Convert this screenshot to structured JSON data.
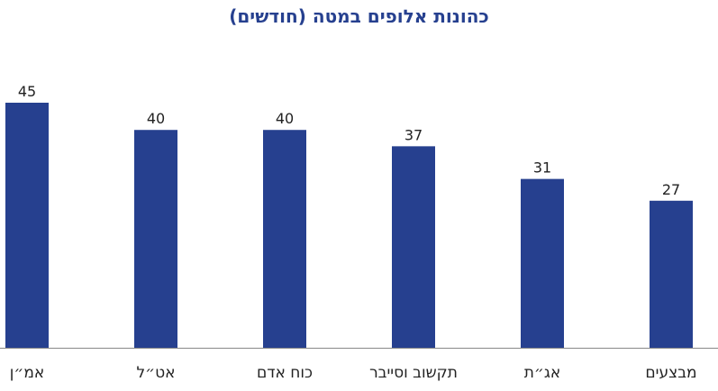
{
  "chart_data": {
    "type": "bar",
    "title": "כהונות אלופים במטה (חודשים)",
    "categories": [
      "אמ״ן",
      "אט״ל",
      "כוח אדם",
      "תקשוב וסייבר",
      "אג״ת",
      "מבצעים"
    ],
    "values": [
      45,
      40,
      40,
      37,
      31,
      27
    ],
    "data_labels": [
      "45",
      "40",
      "40",
      "37",
      "31",
      "27"
    ],
    "ylim": [
      0,
      45
    ],
    "grid": false,
    "legend": "none",
    "colors": {
      "bar": "#26408f",
      "title": "#26408f",
      "axis": "#888888",
      "text": "#222222"
    }
  }
}
